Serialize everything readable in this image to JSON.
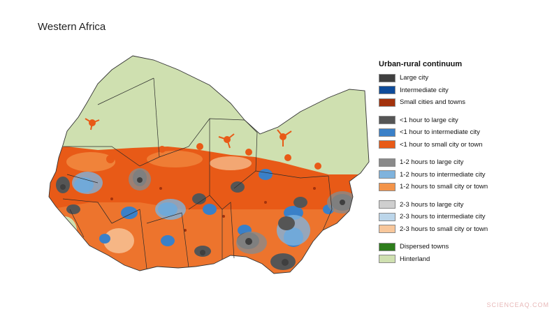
{
  "title": "Western Africa",
  "legend": {
    "heading": "Urban-rural continuum",
    "groups": [
      [
        {
          "label": "Large city",
          "color": "#3f3f3f"
        },
        {
          "label": "Intermediate city",
          "color": "#0d4b9a"
        },
        {
          "label": "Small cities and towns",
          "color": "#a3320c"
        }
      ],
      [
        {
          "label": "<1 hour to large city",
          "color": "#555555"
        },
        {
          "label": "<1 hour to intermediate city",
          "color": "#3a80c8"
        },
        {
          "label": "<1 hour to small city or town",
          "color": "#e85a17"
        }
      ],
      [
        {
          "label": "1-2 hours to large city",
          "color": "#8a8a8a"
        },
        {
          "label": "1-2 hours to intermediate city",
          "color": "#7fb3dd"
        },
        {
          "label": "1-2 hours to small city or town",
          "color": "#f3944a"
        }
      ],
      [
        {
          "label": "2-3 hours to large city",
          "color": "#cfcfcf"
        },
        {
          "label": "2-3 hours to intermediate city",
          "color": "#bcd6ea"
        },
        {
          "label": "2-3 hours to small city or town",
          "color": "#f8c79b"
        }
      ],
      [
        {
          "label": "Dispersed towns",
          "color": "#2d7d1b"
        },
        {
          "label": "Hinterland",
          "color": "#cfe0b0"
        }
      ]
    ]
  },
  "watermark": "SCIENCEAQ.COM"
}
